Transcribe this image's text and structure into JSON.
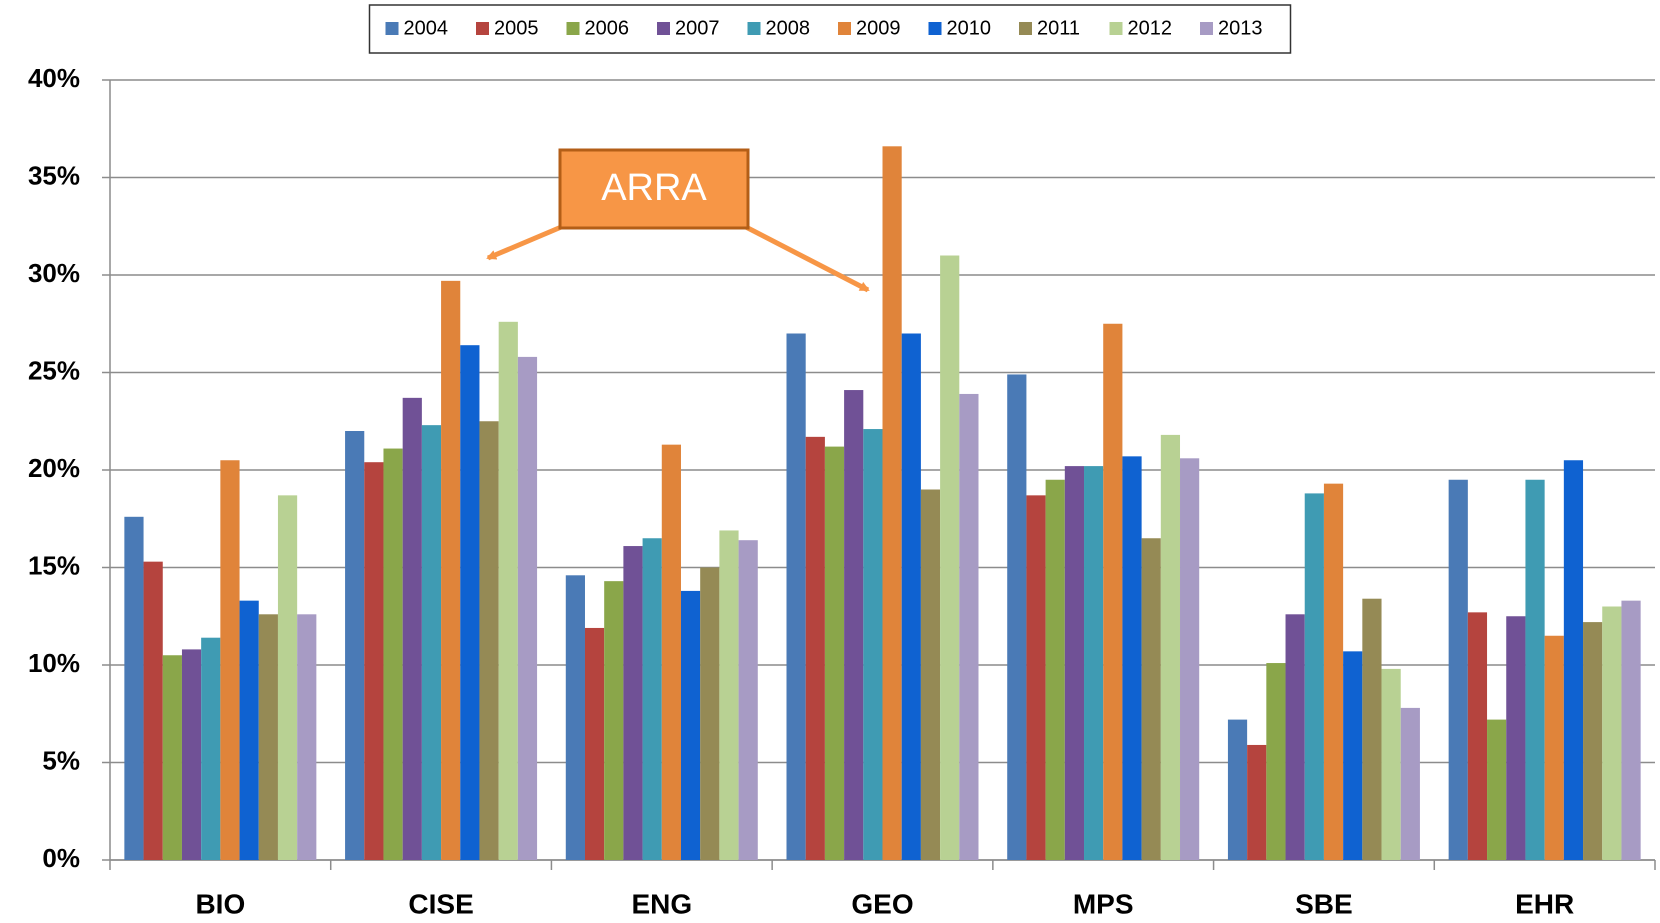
{
  "chart_data": {
    "type": "bar",
    "annotation": "ARRA",
    "categories": [
      "BIO",
      "CISE",
      "ENG",
      "GEO",
      "MPS",
      "SBE",
      "EHR"
    ],
    "series": [
      {
        "name": "2004",
        "color": "#4a7ab6",
        "values": [
          17.6,
          22.0,
          14.6,
          27.0,
          24.9,
          7.2,
          19.5
        ]
      },
      {
        "name": "2005",
        "color": "#b5443e",
        "values": [
          15.3,
          20.4,
          11.9,
          21.7,
          18.7,
          5.9,
          12.7
        ]
      },
      {
        "name": "2006",
        "color": "#8aa64a",
        "values": [
          10.5,
          21.1,
          14.3,
          21.2,
          19.5,
          10.1,
          7.2
        ]
      },
      {
        "name": "2007",
        "color": "#705196",
        "values": [
          10.8,
          23.7,
          16.1,
          24.1,
          20.2,
          12.6,
          12.5
        ]
      },
      {
        "name": "2008",
        "color": "#3f9bb3",
        "values": [
          11.4,
          22.3,
          16.5,
          22.1,
          20.2,
          18.8,
          19.5
        ]
      },
      {
        "name": "2009",
        "color": "#e0843a",
        "values": [
          20.5,
          29.7,
          21.3,
          36.6,
          27.5,
          19.3,
          11.5
        ]
      },
      {
        "name": "2010",
        "color": "#0f62d1",
        "values": [
          13.3,
          26.4,
          13.8,
          27.0,
          20.7,
          10.7,
          20.5
        ]
      },
      {
        "name": "2011",
        "color": "#958a55",
        "values": [
          12.6,
          22.5,
          15.0,
          19.0,
          16.5,
          13.4,
          12.2
        ]
      },
      {
        "name": "2012",
        "color": "#b8d193",
        "values": [
          18.7,
          27.6,
          16.9,
          31.0,
          21.8,
          9.8,
          13.0
        ]
      },
      {
        "name": "2013",
        "color": "#a79bc4",
        "values": [
          12.6,
          25.8,
          16.4,
          23.9,
          20.6,
          7.8,
          13.3
        ]
      }
    ],
    "ylim": [
      0,
      40
    ],
    "yticks": [
      {
        "value": 0,
        "label": "0%"
      },
      {
        "value": 5,
        "label": "5%"
      },
      {
        "value": 10,
        "label": "10%"
      },
      {
        "value": 15,
        "label": "15%"
      },
      {
        "value": 20,
        "label": "20%"
      },
      {
        "value": 25,
        "label": "25%"
      },
      {
        "value": 30,
        "label": "30%"
      },
      {
        "value": 35,
        "label": "35%"
      },
      {
        "value": 40,
        "label": "40%"
      }
    ],
    "grid": true,
    "legend": "top"
  }
}
